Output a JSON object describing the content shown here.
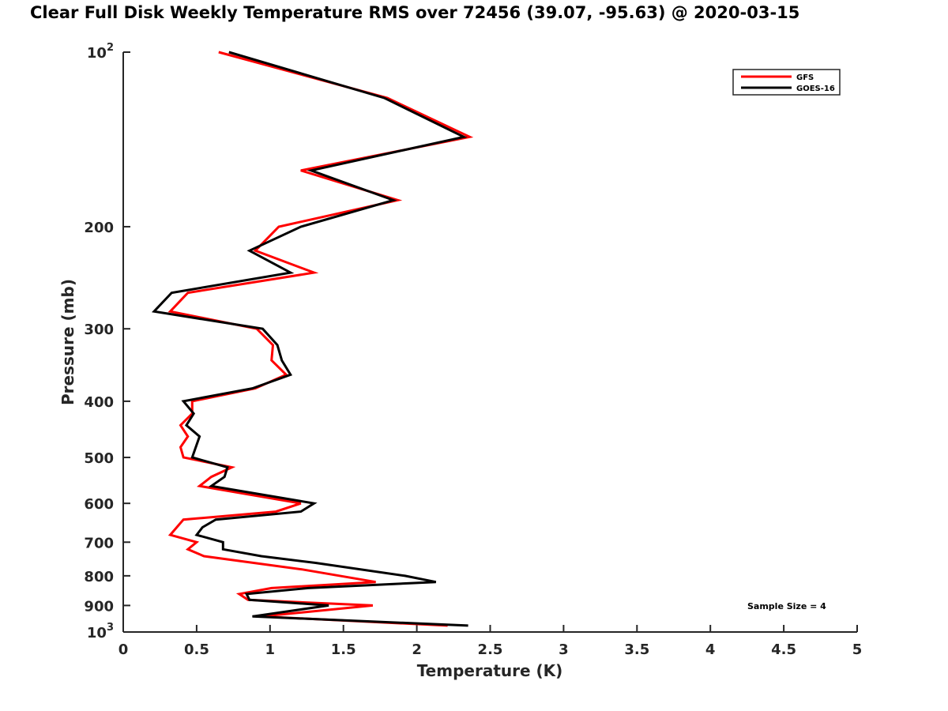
{
  "chart_data": {
    "type": "line",
    "title": "Clear Full Disk Weekly Temperature RMS over 72456 (39.07, -95.63) @ 2020-03-15",
    "xlabel": "Temperature (K)",
    "ylabel": "Pressure (mb)",
    "xlim": [
      0,
      5
    ],
    "ylim": [
      100,
      1000
    ],
    "yscale": "log",
    "yreversed": true,
    "grid": false,
    "x_ticks": [
      0,
      0.5,
      1,
      1.5,
      2,
      2.5,
      3,
      3.5,
      4,
      4.5,
      5
    ],
    "x_tick_labels": [
      "0",
      "0.5",
      "1",
      "1.5",
      "2",
      "2.5",
      "3",
      "3.5",
      "4",
      "4.5",
      "5"
    ],
    "y_ticks": [
      100,
      200,
      300,
      400,
      500,
      600,
      700,
      800,
      900,
      1000
    ],
    "y_tick_labels": [
      {
        "base": "10",
        "exp": "2"
      },
      "200",
      "300",
      "400",
      "500",
      "600",
      "700",
      "800",
      "900",
      {
        "base": "10",
        "exp": "3"
      }
    ],
    "legend": {
      "placement": "top-right",
      "entries": [
        "GFS",
        "GOES-16"
      ]
    },
    "annotations": [
      "Sample Size = 4"
    ],
    "series": [
      {
        "name": "GFS",
        "color": "#ff0000",
        "points": [
          [
            0.65,
            100
          ],
          [
            1.8,
            120
          ],
          [
            2.36,
            140
          ],
          [
            1.21,
            160
          ],
          [
            1.87,
            180
          ],
          [
            1.06,
            200
          ],
          [
            0.9,
            220
          ],
          [
            1.3,
            240
          ],
          [
            0.44,
            260
          ],
          [
            0.32,
            280
          ],
          [
            0.91,
            300
          ],
          [
            1.02,
            320
          ],
          [
            1.01,
            340
          ],
          [
            1.11,
            360
          ],
          [
            0.9,
            380
          ],
          [
            0.47,
            400
          ],
          [
            0.47,
            420
          ],
          [
            0.39,
            440
          ],
          [
            0.44,
            460
          ],
          [
            0.39,
            480
          ],
          [
            0.41,
            500
          ],
          [
            0.74,
            520
          ],
          [
            0.6,
            540
          ],
          [
            0.52,
            560
          ],
          [
            1.21,
            600
          ],
          [
            1.04,
            620
          ],
          [
            0.41,
            640
          ],
          [
            0.32,
            680
          ],
          [
            0.5,
            700
          ],
          [
            0.44,
            720
          ],
          [
            0.55,
            740
          ],
          [
            1.22,
            780
          ],
          [
            1.72,
            820
          ],
          [
            1.01,
            840
          ],
          [
            0.79,
            860
          ],
          [
            0.85,
            880
          ],
          [
            1.7,
            900
          ],
          [
            0.94,
            940
          ],
          [
            2.21,
            975
          ]
        ]
      },
      {
        "name": "GOES-16",
        "color": "#000000",
        "points": [
          [
            0.72,
            100
          ],
          [
            1.78,
            120
          ],
          [
            2.32,
            140
          ],
          [
            1.28,
            160
          ],
          [
            1.84,
            180
          ],
          [
            1.21,
            200
          ],
          [
            0.86,
            220
          ],
          [
            1.14,
            240
          ],
          [
            0.33,
            260
          ],
          [
            0.21,
            280
          ],
          [
            0.95,
            300
          ],
          [
            1.05,
            320
          ],
          [
            1.08,
            340
          ],
          [
            1.14,
            360
          ],
          [
            0.88,
            380
          ],
          [
            0.41,
            400
          ],
          [
            0.48,
            420
          ],
          [
            0.43,
            440
          ],
          [
            0.52,
            460
          ],
          [
            0.47,
            500
          ],
          [
            0.71,
            520
          ],
          [
            0.69,
            540
          ],
          [
            0.6,
            560
          ],
          [
            1.3,
            600
          ],
          [
            1.21,
            620
          ],
          [
            0.63,
            640
          ],
          [
            0.54,
            660
          ],
          [
            0.5,
            680
          ],
          [
            0.68,
            700
          ],
          [
            0.68,
            720
          ],
          [
            0.94,
            740
          ],
          [
            1.31,
            760
          ],
          [
            1.92,
            800
          ],
          [
            2.13,
            820
          ],
          [
            1.26,
            840
          ],
          [
            0.84,
            860
          ],
          [
            0.86,
            880
          ],
          [
            1.4,
            900
          ],
          [
            0.88,
            940
          ],
          [
            2.35,
            975
          ]
        ]
      }
    ]
  }
}
